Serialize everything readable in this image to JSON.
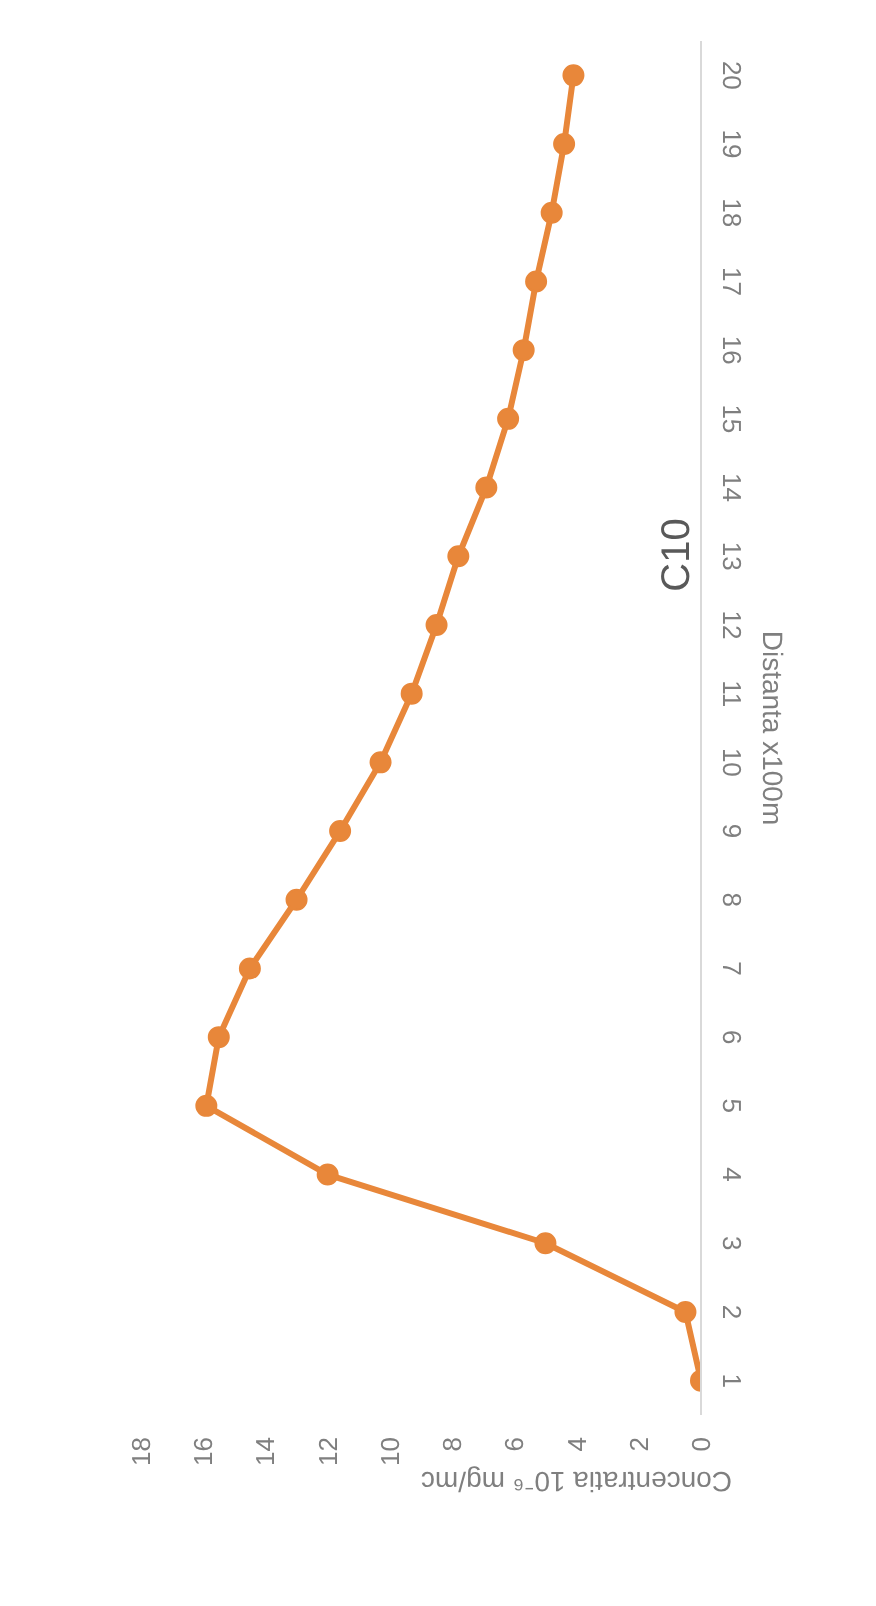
{
  "chart_data": {
    "type": "line",
    "title": "C10",
    "xlabel": "Concentratia 10⁻⁶ mg/mc",
    "y2label": "Distanta x100m",
    "series": [
      {
        "color": "#e8873a",
        "axis": "y2",
        "x": [
          0,
          0.5,
          5,
          12,
          15.9,
          15.5,
          14.5,
          13,
          11.6,
          10.3,
          9.3,
          8.5,
          7.8,
          6.9,
          6.2,
          5.7,
          5.3,
          4.8,
          4.4,
          4.1
        ],
        "values": [
          1,
          2,
          3,
          4,
          5,
          6,
          7,
          8,
          9,
          10,
          11,
          12,
          13,
          14,
          15,
          16,
          17,
          18,
          19,
          20
        ]
      }
    ],
    "xlim": [
      18,
      0
    ],
    "xticks": [
      0,
      2,
      4,
      6,
      8,
      10,
      12,
      14,
      16,
      18
    ],
    "y2lim": [
      0.5,
      20.5
    ],
    "y2ticks": [
      1,
      2,
      3,
      4,
      5,
      6,
      7,
      8,
      9,
      10,
      11,
      12,
      13,
      14,
      15,
      16,
      17,
      18,
      19,
      20
    ],
    "marker": "circle"
  }
}
